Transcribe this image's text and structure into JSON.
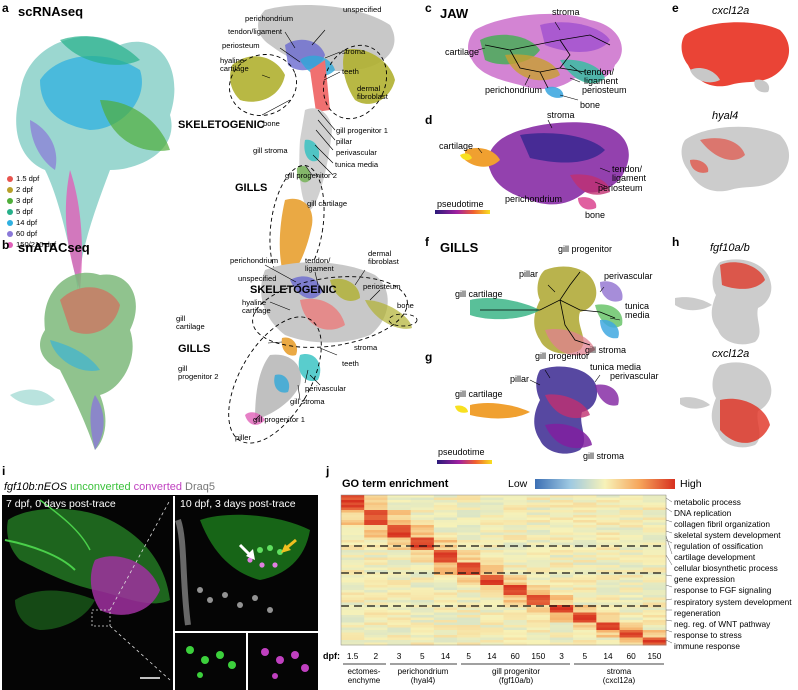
{
  "panels": {
    "a": {
      "letter": "a",
      "title": "scRNAseq"
    },
    "b": {
      "letter": "b",
      "title": "snATACseq"
    },
    "c": {
      "letter": "c",
      "title": "JAW"
    },
    "d": {
      "letter": "d"
    },
    "e": {
      "letter": "e",
      "genes": [
        "cxcl12a",
        "hyal4"
      ]
    },
    "f": {
      "letter": "f",
      "title": "GILLS"
    },
    "g": {
      "letter": "g"
    },
    "h": {
      "letter": "h",
      "genes": [
        "fgf10a/b",
        "cxcl12a"
      ]
    },
    "i": {
      "letter": "i"
    },
    "j": {
      "letter": "j"
    }
  },
  "legend_a": [
    {
      "label": "1.5 dpf",
      "color": "#e8544e"
    },
    {
      "label": "2 dpf",
      "color": "#b8a02a"
    },
    {
      "label": "3 dpf",
      "color": "#4fae3a"
    },
    {
      "label": "5 dpf",
      "color": "#27b08a"
    },
    {
      "label": "14 dpf",
      "color": "#2fb0e0"
    },
    {
      "label": "60 dpf",
      "color": "#8a78d8"
    },
    {
      "label": "150/210 dpf",
      "color": "#e060b8"
    }
  ],
  "a_labels": {
    "perichondrium": "perichondrium",
    "unspecified": "unspecified",
    "tendon": "tendon/ligament",
    "stroma": "stroma",
    "periosteum": "periosteum",
    "teeth": "teeth",
    "hyaline": "hyaline\ncartilage",
    "dermal": "dermal\nfibroblast",
    "skeletogenic": "SKELETOGENIC",
    "bone": "bone",
    "gp1": "gill progenitor 1",
    "pillar": "pillar",
    "gillstroma": "gill stroma",
    "perivascular": "perivascular",
    "tunica": "tunica media",
    "gp2": "gill progenitor 2",
    "gills": "GILLS",
    "gillcart": "gill cartilage"
  },
  "b_labels": {
    "perichondrium": "perichondrium",
    "tendon": "tendon/\nligament",
    "dermal": "dermal\nfibroblast",
    "unspecified": "unspecified",
    "skeletogenic": "SKELETOGENIC",
    "periosteum": "periosteum",
    "hyaline": "hyaline\ncartilage",
    "bone": "bone",
    "gillcart": "gill\ncartilage",
    "stroma": "stroma",
    "gills": "GILLS",
    "teeth": "teeth",
    "gp2": "gill\nprogenitor 2",
    "perivascular": "perivascular",
    "gillstroma": "gill stroma",
    "gp1": "gill progenitor 1",
    "piller": "piller"
  },
  "c_labels": {
    "stroma": "stroma",
    "cartilage": "cartilage",
    "tendon": "tendon/\nligament",
    "perichondrium": "perichondrium",
    "periosteum": "periosteum",
    "bone": "bone"
  },
  "d_labels": {
    "stroma": "stroma",
    "cartilage": "cartilage",
    "tendon": "tendon/\nligament",
    "periosteum": "periosteum",
    "perichondrium": "perichondrium",
    "bone": "bone",
    "pseudotime": "pseudotime"
  },
  "f_labels": {
    "gp": "gill progenitor",
    "pillar": "pillar",
    "perivascular": "perivascular",
    "gillcart": "gill cartilage",
    "tunica": "tunica\nmedia",
    "gillstroma": "gill stroma"
  },
  "g_labels": {
    "gp": "gill progenitor",
    "pillar": "pillar",
    "tunica": "tunica media",
    "perivascular": "perivascular",
    "gillcart": "gill cartilage",
    "pseudotime": "pseudotime",
    "gillstroma": "gill stroma"
  },
  "i": {
    "line": "fgf10b:nEOS",
    "unconverted": "unconverted",
    "converted": "converted",
    "draq5": "Draq5",
    "left_caption": "7 dpf, 0 days post-trace",
    "right_caption": "10 dpf, 3 days post-trace"
  },
  "j": {
    "title": "GO term enrichment",
    "low": "Low",
    "high": "High",
    "terms": [
      "metabolic process",
      "DNA replication",
      "collagen fibril organization",
      "skeletal system development",
      "cartilage development",
      "regulation of ossification",
      "cellular biosynthetic process",
      "gene expression",
      "response to FGF signaling",
      "respiratory system development",
      "regeneration",
      "neg. reg. of WNT pathway",
      "response to stress",
      "immune response"
    ],
    "dpf_label": "dpf:",
    "ticks": [
      "1.5",
      "2",
      "3",
      "5",
      "14",
      "5",
      "14",
      "60",
      "150",
      "3",
      "5",
      "14",
      "60",
      "150"
    ],
    "groups": [
      {
        "label": "ectomes-\nenchyme"
      },
      {
        "label": "perichondrium\n(hyal4)"
      },
      {
        "label": "gill progenitor\n(fgf10a/b)"
      },
      {
        "label": "stroma\n(cxcl12a)"
      }
    ],
    "colors": {
      "low": "#3c6fb4",
      "mid": "#f7f2b8",
      "high": "#d7301f"
    }
  }
}
